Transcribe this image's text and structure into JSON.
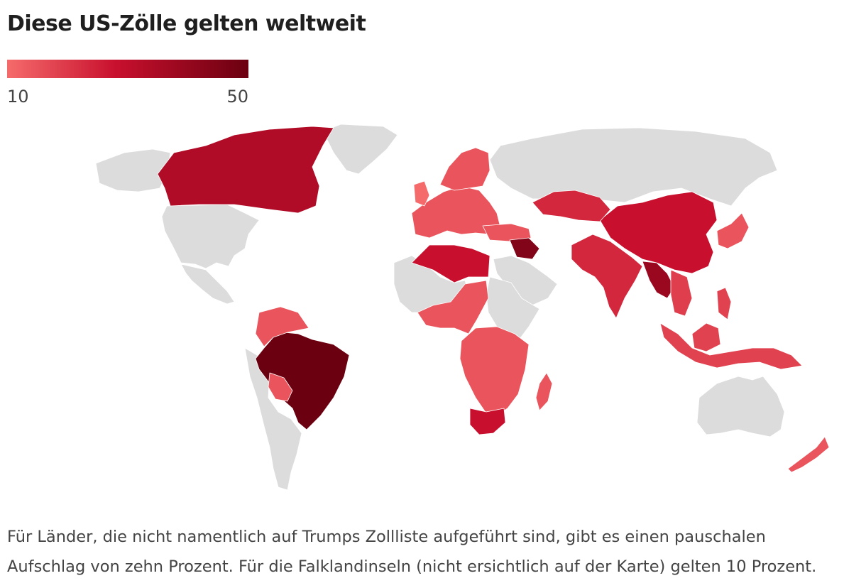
{
  "title": "Diese US-Zölle gelten weltweit",
  "legend": {
    "min_label": "10",
    "max_label": "50",
    "min": 10,
    "max": 50,
    "color_low": "#f56b6b",
    "color_mid": "#c8102e",
    "color_high": "#6b0010"
  },
  "colors": {
    "no_data": "#dcdcdc",
    "background": "#ffffff"
  },
  "note": {
    "line1": "Für Länder, die nicht namentlich auf Trumps Zollliste aufgeführt sind, gibt es einen pauschalen",
    "line2": "Aufschlag von zehn Prozent. Für die Falklandinseln (nicht ersichtlich auf der Karte) gelten 10 Prozent."
  }
}
